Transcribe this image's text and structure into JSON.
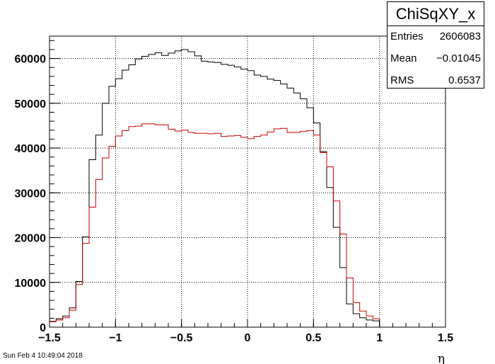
{
  "stats": {
    "title": "ChiSqXY_x",
    "rows": [
      {
        "label": "Entries",
        "value": "2606083"
      },
      {
        "label": "Mean",
        "value": "−0.01045"
      },
      {
        "label": "RMS",
        "value": "0.6537"
      }
    ]
  },
  "timestamp": "Sun Feb  4 10:49:04 2018",
  "chart_data": {
    "type": "histogram",
    "xlabel": "η",
    "ylabel": "",
    "xlim": [
      -1.5,
      1.5
    ],
    "ylim": [
      0,
      65000
    ],
    "bin_width": 0.05,
    "x_ticks": [
      {
        "value": -1.5,
        "label": "−1.5"
      },
      {
        "value": -1,
        "label": "−1"
      },
      {
        "value": -0.5,
        "label": "−0.5"
      },
      {
        "value": 0,
        "label": "0"
      },
      {
        "value": 0.5,
        "label": "0.5"
      },
      {
        "value": 1,
        "label": "1"
      },
      {
        "value": 1.5,
        "label": "1.5"
      }
    ],
    "y_ticks": [
      {
        "value": 0,
        "label": "0"
      },
      {
        "value": 10000,
        "label": "10000"
      },
      {
        "value": 20000,
        "label": "20000"
      },
      {
        "value": 30000,
        "label": "30000"
      },
      {
        "value": 40000,
        "label": "40000"
      },
      {
        "value": 50000,
        "label": "50000"
      },
      {
        "value": 60000,
        "label": "60000"
      }
    ],
    "grid": true,
    "series": [
      {
        "color": "#000000",
        "values": [
          1300,
          1900,
          2500,
          4300,
          10200,
          20200,
          37400,
          42900,
          50000,
          53800,
          55500,
          57400,
          58600,
          59900,
          60500,
          60900,
          61300,
          60700,
          61200,
          61700,
          62000,
          61500,
          60600,
          59400,
          59200,
          59100,
          58700,
          58500,
          58100,
          57600,
          57300,
          56300,
          56000,
          55400,
          55100,
          54300,
          53400,
          52300,
          51000,
          49000,
          45600,
          39200,
          31200,
          22300,
          13300,
          5200,
          3000,
          2100,
          1600,
          1400
        ]
      },
      {
        "color": "#cc0000",
        "values": [
          1200,
          1600,
          2100,
          3800,
          9500,
          18700,
          26800,
          33000,
          37800,
          40400,
          42700,
          43900,
          44800,
          44900,
          45400,
          45400,
          45200,
          45200,
          44200,
          43800,
          44000,
          43500,
          43300,
          43300,
          43200,
          43300,
          42600,
          42700,
          42800,
          42400,
          42100,
          42600,
          42900,
          43600,
          44300,
          44400,
          43500,
          43500,
          43700,
          43900,
          42900,
          39000,
          35800,
          28200,
          20800,
          11000,
          5500,
          3600,
          2500,
          1900
        ]
      }
    ]
  }
}
